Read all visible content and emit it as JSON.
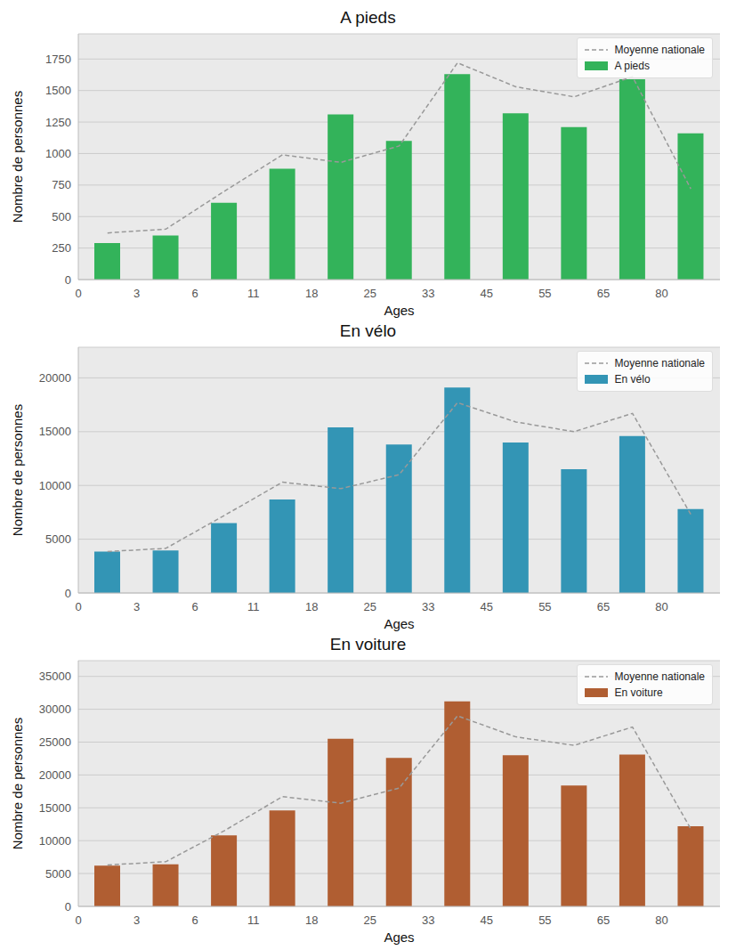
{
  "chart_data": [
    {
      "type": "bar",
      "title": "A pieds",
      "xlabel": "Ages",
      "ylabel": "Nombre de personnes",
      "categories": [
        "0",
        "3",
        "6",
        "11",
        "18",
        "25",
        "33",
        "45",
        "55",
        "65",
        "80"
      ],
      "series": [
        {
          "name": "Moyenne nationale",
          "type": "line",
          "color": "#999999",
          "line_style": "dashed",
          "values": [
            370,
            400,
            700,
            990,
            930,
            1060,
            1720,
            1530,
            1450,
            1610,
            720
          ]
        },
        {
          "name": "A pieds",
          "type": "bar",
          "color": "#33b35a",
          "values": [
            290,
            350,
            610,
            880,
            1310,
            1100,
            1630,
            1320,
            1210,
            1590,
            1160
          ]
        }
      ],
      "ylim": [
        0,
        1950
      ],
      "yticks": [
        0,
        250,
        500,
        750,
        1000,
        1250,
        1500,
        1750
      ],
      "grid": true,
      "legend": "upper right"
    },
    {
      "type": "bar",
      "title": "En vélo",
      "xlabel": "Ages",
      "ylabel": "Nombre de personnes",
      "categories": [
        "0",
        "3",
        "6",
        "11",
        "18",
        "25",
        "33",
        "45",
        "55",
        "65",
        "80"
      ],
      "series": [
        {
          "name": "Moyenne nationale",
          "type": "line",
          "color": "#999999",
          "line_style": "dashed",
          "values": [
            3850,
            4150,
            7200,
            10300,
            9700,
            11000,
            17700,
            15900,
            15000,
            16700,
            7300
          ]
        },
        {
          "name": "En vélo",
          "type": "bar",
          "color": "#3395b5",
          "values": [
            3850,
            3950,
            6500,
            8700,
            15400,
            13800,
            19100,
            14000,
            11500,
            14600,
            7800
          ]
        }
      ],
      "ylim": [
        0,
        22850
      ],
      "yticks": [
        0,
        5000,
        10000,
        15000,
        20000
      ],
      "grid": true,
      "legend": "upper right"
    },
    {
      "type": "bar",
      "title": "En voiture",
      "xlabel": "Ages",
      "ylabel": "Nombre de personnes",
      "categories": [
        "0",
        "3",
        "6",
        "11",
        "18",
        "25",
        "33",
        "45",
        "55",
        "65",
        "80"
      ],
      "series": [
        {
          "name": "Moyenne nationale",
          "type": "line",
          "color": "#999999",
          "line_style": "dashed",
          "values": [
            6300,
            6800,
            11500,
            16700,
            15700,
            18000,
            29000,
            25800,
            24500,
            27300,
            11800
          ]
        },
        {
          "name": "En voiture",
          "type": "bar",
          "color": "#b05e32",
          "values": [
            6200,
            6400,
            10800,
            14600,
            25500,
            22600,
            31200,
            23000,
            18400,
            23100,
            12200
          ]
        }
      ],
      "ylim": [
        0,
        37400
      ],
      "yticks": [
        0,
        5000,
        10000,
        15000,
        20000,
        25000,
        30000,
        35000
      ],
      "grid": true,
      "legend": "upper right"
    }
  ]
}
